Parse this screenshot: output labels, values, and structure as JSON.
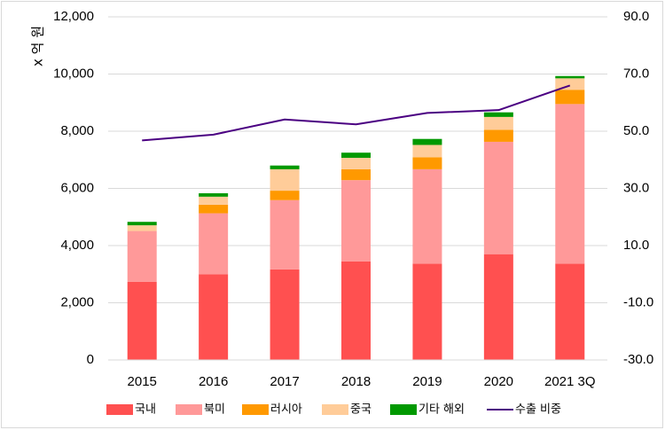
{
  "chart_data": {
    "type": "bar",
    "stacked": true,
    "categories": [
      "2015",
      "2016",
      "2017",
      "2018",
      "2019",
      "2020",
      "2021 3Q"
    ],
    "series": [
      {
        "name": "국내",
        "color": "#ff5050",
        "values": [
          2730,
          3000,
          3170,
          3450,
          3370,
          3700,
          3370
        ]
      },
      {
        "name": "북미",
        "color": "#ff9999",
        "values": [
          1780,
          2130,
          2420,
          2840,
          3300,
          3930,
          5580
        ]
      },
      {
        "name": "러시아",
        "color": "#ff9900",
        "values": [
          0,
          300,
          330,
          380,
          420,
          420,
          500
        ]
      },
      {
        "name": "중국",
        "color": "#ffcc99",
        "values": [
          200,
          280,
          750,
          400,
          430,
          450,
          400
        ]
      },
      {
        "name": "기타 해외",
        "color": "#009900",
        "values": [
          120,
          120,
          130,
          180,
          210,
          160,
          80
        ]
      }
    ],
    "line_series": {
      "name": "수출 비중",
      "color": "#4b0082",
      "axis": "secondary",
      "values": [
        46.8,
        48.8,
        54.1,
        52.4,
        56.4,
        57.4,
        66.0
      ]
    },
    "ylabel": "x 억 원",
    "ylim": [
      0,
      12000
    ],
    "yticks": [
      "0",
      "2,000",
      "4,000",
      "6,000",
      "8,000",
      "10,000",
      "12,000"
    ],
    "y2lim": [
      -30,
      90
    ],
    "y2ticks": [
      "-30.0",
      "-10.0",
      "10.0",
      "30.0",
      "50.0",
      "70.0",
      "90.0"
    ],
    "grid": true,
    "legend": "bottom"
  }
}
